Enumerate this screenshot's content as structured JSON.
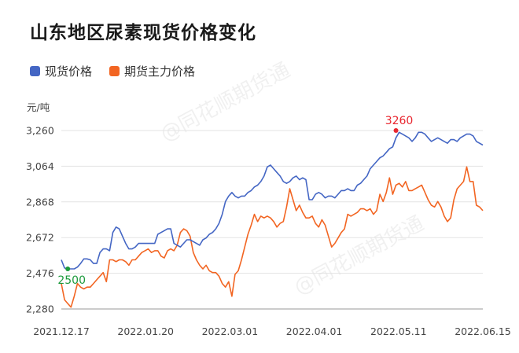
{
  "title": "山东地区尿素现货价格变化",
  "legend": [
    {
      "label": "现货价格",
      "color": "#4466c4"
    },
    {
      "label": "期货主力价格",
      "color": "#f26522"
    }
  ],
  "watermark": "@同花顺期货通",
  "chart_data": {
    "type": "line",
    "ylabel": "元/吨",
    "ylim": [
      2280,
      3260
    ],
    "yticks": [
      "2,280",
      "2,476",
      "2,672",
      "2,868",
      "3,064",
      "3,260"
    ],
    "xticks": [
      "2021.12.17",
      "2022.01.20",
      "2022.03.01",
      "2022.04.01",
      "2022.05.11",
      "2022.06.15"
    ],
    "series": [
      {
        "name": "现货价格",
        "color": "#4466c4",
        "values": [
          2550,
          2505,
          2500,
          2500,
          2500,
          2510,
          2530,
          2555,
          2555,
          2550,
          2530,
          2530,
          2590,
          2610,
          2610,
          2600,
          2700,
          2730,
          2720,
          2680,
          2640,
          2610,
          2610,
          2620,
          2640,
          2640,
          2640,
          2640,
          2640,
          2640,
          2690,
          2700,
          2710,
          2720,
          2720,
          2640,
          2630,
          2620,
          2640,
          2660,
          2660,
          2650,
          2640,
          2630,
          2660,
          2670,
          2690,
          2700,
          2720,
          2750,
          2800,
          2870,
          2900,
          2920,
          2900,
          2890,
          2900,
          2900,
          2920,
          2930,
          2950,
          2960,
          2980,
          3010,
          3060,
          3070,
          3050,
          3030,
          3010,
          2980,
          2970,
          2980,
          3000,
          3010,
          2990,
          3000,
          2990,
          2880,
          2880,
          2910,
          2920,
          2910,
          2890,
          2900,
          2900,
          2890,
          2910,
          2930,
          2930,
          2940,
          2930,
          2930,
          2960,
          2970,
          2990,
          3010,
          3050,
          3070,
          3090,
          3110,
          3120,
          3140,
          3160,
          3170,
          3220,
          3250,
          3240,
          3230,
          3220,
          3200,
          3220,
          3250,
          3250,
          3240,
          3220,
          3200,
          3210,
          3220,
          3210,
          3200,
          3190,
          3210,
          3210,
          3200,
          3220,
          3230,
          3240,
          3240,
          3230,
          3200,
          3190,
          3180
        ],
        "annotation": {
          "label": "3260",
          "index": 104,
          "value": 3260,
          "color": "#e8262f"
        }
      },
      {
        "name": "期货主力价格",
        "color": "#f26522",
        "values": [
          2420,
          2330,
          2310,
          2290,
          2350,
          2420,
          2400,
          2390,
          2400,
          2400,
          2420,
          2440,
          2460,
          2480,
          2430,
          2550,
          2550,
          2540,
          2550,
          2550,
          2540,
          2520,
          2550,
          2550,
          2570,
          2590,
          2600,
          2610,
          2590,
          2600,
          2600,
          2570,
          2560,
          2600,
          2610,
          2600,
          2630,
          2700,
          2720,
          2710,
          2680,
          2590,
          2550,
          2520,
          2500,
          2520,
          2490,
          2480,
          2480,
          2460,
          2420,
          2400,
          2430,
          2350,
          2470,
          2490,
          2550,
          2620,
          2690,
          2740,
          2800,
          2760,
          2790,
          2780,
          2790,
          2780,
          2760,
          2730,
          2750,
          2760,
          2840,
          2940,
          2880,
          2820,
          2850,
          2810,
          2780,
          2780,
          2790,
          2750,
          2730,
          2770,
          2740,
          2680,
          2620,
          2640,
          2670,
          2700,
          2720,
          2800,
          2790,
          2800,
          2810,
          2830,
          2830,
          2820,
          2830,
          2800,
          2820,
          2910,
          2870,
          2920,
          3000,
          2910,
          2960,
          2970,
          2950,
          2980,
          2930,
          2930,
          2940,
          2950,
          2960,
          2920,
          2880,
          2850,
          2840,
          2870,
          2840,
          2790,
          2760,
          2780,
          2880,
          2940,
          2960,
          2980,
          3060,
          2980,
          2980,
          2850,
          2840,
          2820
        ]
      }
    ]
  }
}
